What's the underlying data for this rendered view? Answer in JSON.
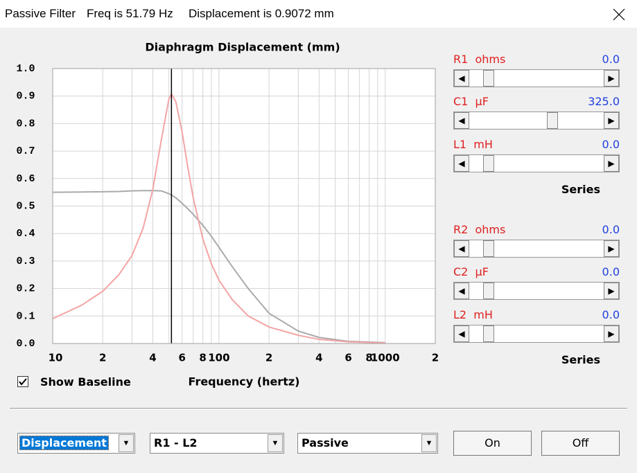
{
  "window": {
    "title": "Passive Filter",
    "freq": "Freq is 51.79 Hz",
    "displacement": "Displacement is 0.9072 mm"
  },
  "chart_data": {
    "type": "line",
    "title": "Diaphragm Displacement (mm)",
    "x_label": "Frequency (hertz)",
    "x": [
      10,
      15,
      20,
      25,
      30,
      35,
      40,
      45,
      50,
      51.79,
      55,
      60,
      65,
      70,
      80,
      90,
      100,
      120,
      150,
      200,
      300,
      400,
      600,
      1000
    ],
    "series": [
      {
        "color": "#f4a4a4",
        "values": [
          0.09,
          0.14,
          0.19,
          0.25,
          0.32,
          0.42,
          0.56,
          0.74,
          0.89,
          0.9072,
          0.88,
          0.77,
          0.64,
          0.53,
          0.38,
          0.29,
          0.23,
          0.16,
          0.1,
          0.06,
          0.03,
          0.015,
          0.006,
          0.002
        ]
      },
      {
        "color": "#aaaaaa",
        "values": [
          0.55,
          0.551,
          0.552,
          0.553,
          0.555,
          0.556,
          0.556,
          0.555,
          0.545,
          0.54,
          0.53,
          0.51,
          0.49,
          0.47,
          0.43,
          0.39,
          0.35,
          0.28,
          0.2,
          0.11,
          0.045,
          0.022,
          0.008,
          0.003
        ]
      }
    ],
    "xlim": [
      10,
      2000
    ],
    "xscale": "log",
    "xticks": [
      10,
      {
        "value": 20,
        "label": "2"
      },
      {
        "value": 40,
        "label": "4"
      },
      {
        "value": 60,
        "label": "6"
      },
      {
        "value": 80,
        "label": "8"
      },
      100,
      {
        "value": 200,
        "label": "2"
      },
      {
        "value": 400,
        "label": "4"
      },
      {
        "value": 600,
        "label": "6"
      },
      {
        "value": 800,
        "label": "8"
      },
      1000,
      {
        "value": 2000,
        "label": "2"
      }
    ],
    "minor_xticks": [
      30,
      50,
      70,
      90,
      300,
      500,
      700,
      900
    ],
    "ylim": [
      0,
      1
    ],
    "yticks": [
      {
        "value": 0,
        "label": "0.0"
      },
      0.1,
      0.2,
      0.3,
      0.4,
      0.5,
      0.6,
      0.7,
      0.8,
      0.9,
      {
        "value": 1,
        "label": "1.0"
      }
    ],
    "grid": true,
    "cursor_x": 51.79,
    "cursor_color": "#000000"
  },
  "baseline_checkbox": {
    "label": "Show Baseline",
    "checked": true
  },
  "controls": [
    {
      "label": "R1  ohms",
      "value": "0.0"
    },
    {
      "label": "C1  µF",
      "value": "325.0"
    },
    {
      "label": "L1  mH",
      "value": "0.0"
    },
    {
      "label": "R2  ohms",
      "value": "0.0"
    },
    {
      "label": "C2  µF",
      "value": "0.0"
    },
    {
      "label": "L2  mH",
      "value": "0.0"
    }
  ],
  "series_labels": [
    "Series",
    "Series"
  ],
  "dropdowns": [
    "Displacement",
    "R1 - L2",
    "Passive"
  ],
  "buttons": [
    "On",
    "Off"
  ]
}
